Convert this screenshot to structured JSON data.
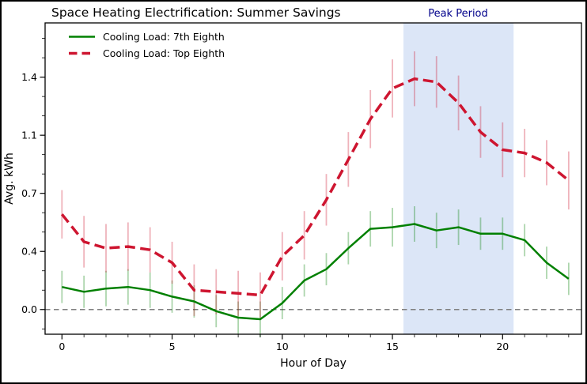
{
  "figure": {
    "border_color": "#000000",
    "background": "#ffffff"
  },
  "chart_data": {
    "type": "line",
    "title": "Space Heating Electrification: Summer Savings",
    "xlabel": "Hour of Day",
    "ylabel": "Avg. kWh",
    "grid": false,
    "legend_position": "upper-left",
    "xlim": [
      -0.765,
      23.58
    ],
    "ylim": [
      -0.153,
      1.776
    ],
    "xticks": {
      "major": [
        0,
        5,
        10,
        15,
        20
      ],
      "labels": [
        "0",
        "5",
        "10",
        "15",
        "20"
      ],
      "minor_step": 1
    },
    "yticks": {
      "major": [
        0,
        0.36,
        0.72,
        1.08,
        1.44
      ],
      "labels": [
        "0.0",
        "0.4",
        "0.7",
        "1.1",
        "1.4"
      ],
      "minor_step": 0.12
    },
    "x": [
      0,
      1,
      2,
      3,
      4,
      5,
      6,
      7,
      8,
      9,
      10,
      11,
      12,
      13,
      14,
      15,
      16,
      17,
      18,
      19,
      20,
      21,
      22,
      23
    ],
    "series": [
      {
        "name": "Cooling Load: 7th Eighth",
        "color": "#008000",
        "style": "solid",
        "line_width": 2.5,
        "values": [
          0.14,
          0.11,
          0.13,
          0.14,
          0.12,
          0.08,
          0.05,
          -0.01,
          -0.05,
          -0.06,
          0.04,
          0.18,
          0.25,
          0.38,
          0.5,
          0.51,
          0.53,
          0.49,
          0.51,
          0.47,
          0.47,
          0.43,
          0.29,
          0.19
        ],
        "errors": [
          0.1,
          0.1,
          0.11,
          0.11,
          0.11,
          0.1,
          0.1,
          0.1,
          0.1,
          0.11,
          0.1,
          0.1,
          0.1,
          0.1,
          0.11,
          0.12,
          0.11,
          0.11,
          0.11,
          0.1,
          0.1,
          0.1,
          0.1,
          0.1
        ]
      },
      {
        "name": "Cooling Load: Top Eighth",
        "color": "#CE1530",
        "style": "dashed",
        "line_width": 3.5,
        "values": [
          0.59,
          0.42,
          0.38,
          0.39,
          0.37,
          0.29,
          0.12,
          0.11,
          0.1,
          0.09,
          0.33,
          0.46,
          0.68,
          0.93,
          1.18,
          1.37,
          1.43,
          1.41,
          1.28,
          1.1,
          0.99,
          0.97,
          0.91,
          0.8
        ],
        "errors": [
          0.15,
          0.16,
          0.15,
          0.15,
          0.14,
          0.13,
          0.16,
          0.14,
          0.14,
          0.14,
          0.15,
          0.15,
          0.16,
          0.17,
          0.18,
          0.18,
          0.17,
          0.16,
          0.17,
          0.16,
          0.17,
          0.15,
          0.14,
          0.18
        ]
      }
    ],
    "error_bar_alpha": 0.32,
    "baseline": {
      "y": 0,
      "color": "#7f7f7f",
      "style": "dashed"
    },
    "annotations": {
      "peak_period": {
        "label": "Peak Period",
        "x_start": 15.5,
        "x_end": 20.5,
        "band_color": "#dce6f7",
        "label_color": "#00008B"
      }
    }
  }
}
